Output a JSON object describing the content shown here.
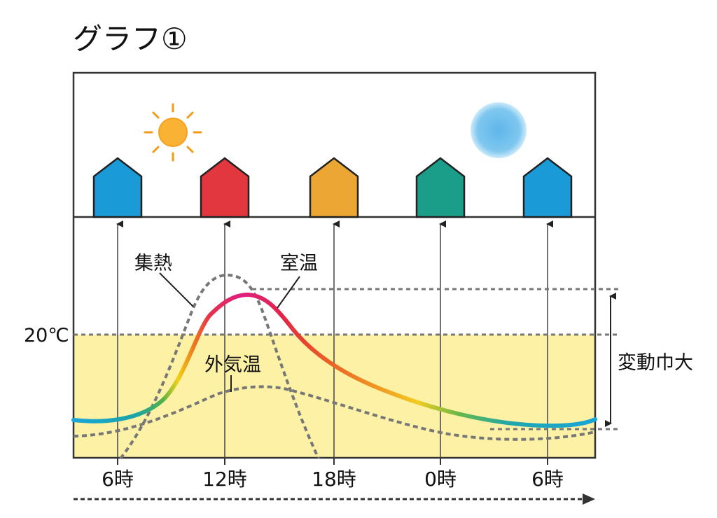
{
  "title": "グラフ①",
  "labels": {
    "collect_heat": "集熱",
    "room_temp": "室温",
    "outside_temp": "外気温",
    "variation": "変動巾大",
    "threshold": "20℃"
  },
  "time_ticks": [
    "6時",
    "12時",
    "18時",
    "0時",
    "6時"
  ],
  "icons": {
    "sun": "sun-icon",
    "moon": "moon-icon",
    "house": "house-icon"
  },
  "colors": {
    "house_fills": [
      "#1a9ad6",
      "#e2373f",
      "#eba633",
      "#1a9e8a",
      "#1a9ad6"
    ],
    "comfort_band": "#fcf1a4",
    "sun": "#f9b233",
    "moon_glow": "#7ec7ef",
    "room_gradient": [
      "#19a6d8",
      "#23a06b",
      "#f5d21a",
      "#ee7a1a",
      "#e12a40",
      "#e0207f"
    ],
    "dashed": "#777777"
  }
}
